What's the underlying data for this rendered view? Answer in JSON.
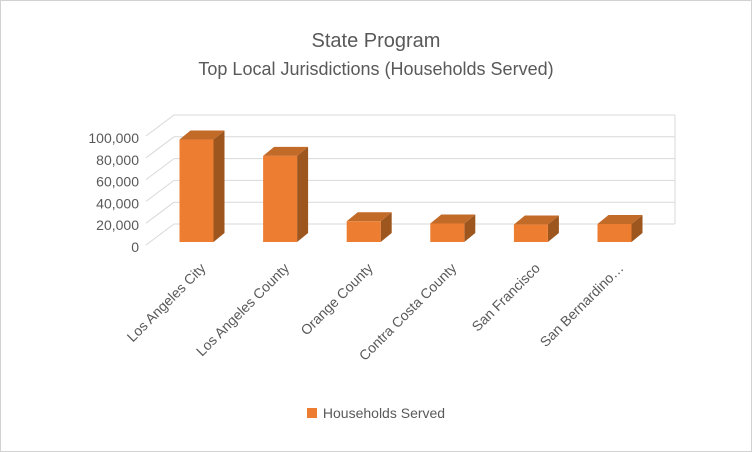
{
  "chart_data": {
    "type": "bar",
    "variant": "3d-column",
    "title": "State Program",
    "subtitle": "Top Local Jurisdictions (Households Served)",
    "categories": [
      "Los Angeles City",
      "Los Angeles County",
      "Orange County",
      "Contra Costa County",
      "San Francisco",
      "San Bernardino…"
    ],
    "series": [
      {
        "name": "Households Served",
        "values": [
          94000,
          79000,
          19000,
          17000,
          16000,
          16500
        ]
      }
    ],
    "ylim": [
      0,
      100000
    ],
    "y_ticks": [
      0,
      20000,
      40000,
      60000,
      80000,
      100000
    ],
    "y_tick_labels": [
      "0",
      "20,000",
      "40,000",
      "60,000",
      "80,000",
      "100,000"
    ],
    "grid": true,
    "legend_position": "bottom",
    "colors": {
      "bar_front": "#ED7D31",
      "bar_top": "#C26A28",
      "bar_side": "#9E561F",
      "gridline": "#D9D9D9",
      "text": "#595959",
      "frame_border": "#D2D2D2"
    }
  }
}
